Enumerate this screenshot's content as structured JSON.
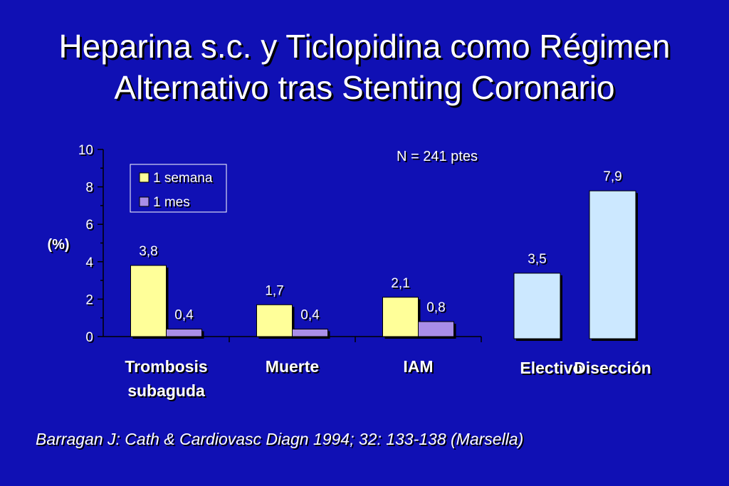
{
  "slide": {
    "title_line1": "Heparina s.c. y Ticlopidina como Régimen",
    "title_line2": "Alternativo tras Stenting Coronario",
    "citation": "Barragan J: Cath & Cardiovasc Diagn 1994; 32: 133-138 (Marsella)"
  },
  "chart_data": [
    {
      "type": "bar",
      "title": "",
      "ylabel": "(%)",
      "ylim": [
        0,
        10
      ],
      "yticks": [
        "0",
        "2",
        "4",
        "6",
        "8",
        "10"
      ],
      "annotation": "N = 241 ptes",
      "legend_position": "top-left",
      "categories": [
        {
          "label_lines": [
            "Trombosis",
            "subaguda"
          ]
        },
        {
          "label_lines": [
            "Muerte"
          ]
        },
        {
          "label_lines": [
            "IAM"
          ]
        }
      ],
      "series": [
        {
          "name": "1 semana",
          "color": "#ffff99",
          "values": [
            3.8,
            1.7,
            2.1
          ],
          "labels": [
            "3,8",
            "1,7",
            "2,1"
          ]
        },
        {
          "name": "1 mes",
          "color": "#a98ee8",
          "values": [
            0.4,
            0.4,
            0.8
          ],
          "labels": [
            "0,4",
            "0,4",
            "0,8"
          ]
        }
      ]
    },
    {
      "type": "bar",
      "title": "",
      "color": "#cce8ff",
      "categories": [
        "Electivo",
        "Disección"
      ],
      "values": [
        3.5,
        7.9
      ],
      "labels": [
        "3,5",
        "7,9"
      ]
    }
  ]
}
